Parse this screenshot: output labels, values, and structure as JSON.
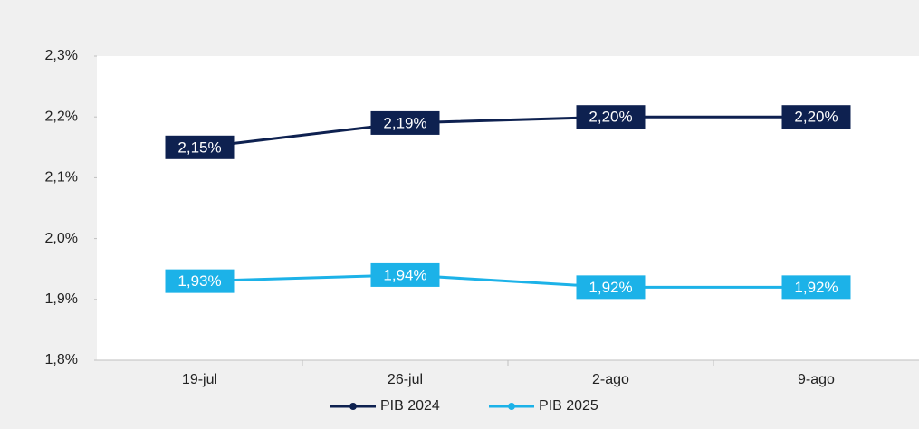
{
  "chart_data": {
    "type": "line",
    "categories": [
      "19-jul",
      "26-jul",
      "2-ago",
      "9-ago"
    ],
    "series": [
      {
        "name": "PIB 2024",
        "color": "#0e2150",
        "values": [
          2.15,
          2.19,
          2.2,
          2.2
        ],
        "value_labels": [
          "2,15%",
          "2,19%",
          "2,20%",
          "2,20%"
        ]
      },
      {
        "name": "PIB 2025",
        "color": "#1cb2e8",
        "values": [
          1.93,
          1.94,
          1.92,
          1.92
        ],
        "value_labels": [
          "1,93%",
          "1,94%",
          "1,92%",
          "1,92%"
        ]
      }
    ],
    "ylim": [
      1.8,
      2.3
    ],
    "yticks": [
      {
        "value": 1.8,
        "label": "1,8%"
      },
      {
        "value": 1.9,
        "label": "1,9%"
      },
      {
        "value": 2.0,
        "label": "2,0%"
      },
      {
        "value": 2.1,
        "label": "2,1%"
      },
      {
        "value": 2.2,
        "label": "2,2%"
      },
      {
        "value": 2.3,
        "label": "2,3%"
      }
    ],
    "legend": "bottom"
  }
}
